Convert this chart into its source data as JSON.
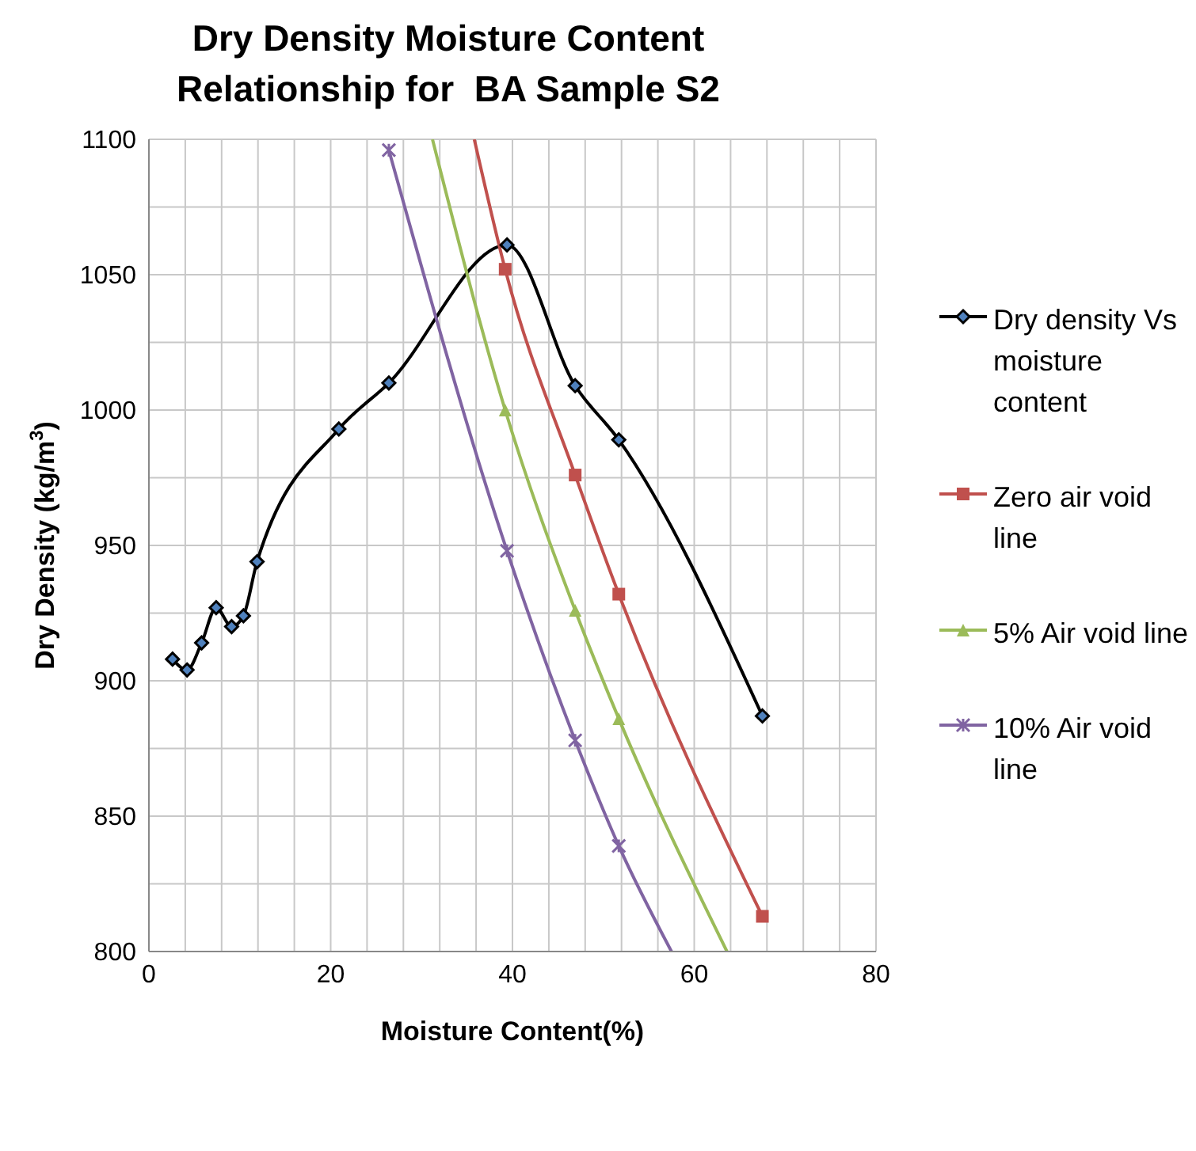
{
  "chart_data": {
    "type": "line",
    "title": "Dry Density Moisture Content Relationship for  BA Sample S2",
    "xlabel": "Moisture Content(%)",
    "ylabel": "Dry Density (kg/m$^{3}$)",
    "xlim": [
      0,
      80
    ],
    "xticks": [
      0,
      {
        "value": 4,
        "label": null
      },
      {
        "value": 8,
        "label": null
      },
      {
        "value": 12,
        "label": null
      },
      {
        "value": 16,
        "label": null
      },
      20,
      {
        "value": 24,
        "label": null
      },
      {
        "value": 28,
        "label": null
      },
      {
        "value": 32,
        "label": null
      },
      {
        "value": 36,
        "label": null
      },
      40,
      {
        "value": 44,
        "label": null
      },
      {
        "value": 48,
        "label": null
      },
      {
        "value": 52,
        "label": null
      },
      {
        "value": 56,
        "label": null
      },
      60,
      {
        "value": 64,
        "label": null
      },
      {
        "value": 68,
        "label": null
      },
      {
        "value": 72,
        "label": null
      },
      {
        "value": 76,
        "label": null
      },
      80
    ],
    "ylim": [
      800,
      1100
    ],
    "yticks": [
      800,
      {
        "value": 825,
        "label": null
      },
      850,
      {
        "value": 875,
        "label": null
      },
      900,
      {
        "value": 925,
        "label": null
      },
      950,
      {
        "value": 975,
        "label": null
      },
      1000,
      {
        "value": 1025,
        "label": null
      },
      1050,
      {
        "value": 1075,
        "label": null
      },
      1100
    ],
    "grid": true,
    "legend": "right",
    "series": [
      {
        "name": "Dry density Vs moisture content",
        "color": "#000000",
        "marker": "diamond",
        "x": [
          2.6,
          4.2,
          5.8,
          7.4,
          9.1,
          10.4,
          11.9,
          20.9,
          26.4,
          39.4,
          46.9,
          51.7,
          67.5
        ],
        "values": [
          908,
          904,
          914,
          927,
          920,
          924,
          944,
          993,
          1010,
          1061,
          1009,
          989,
          887
        ]
      },
      {
        "name": "Zero air void line",
        "color": "#c0504d",
        "marker": "square",
        "x": [
          35.8,
          39.2,
          46.9,
          51.7,
          67.5
        ],
        "values": [
          1100,
          1052,
          976,
          932,
          813
        ]
      },
      {
        "name": "5% Air void line",
        "color": "#9bbb59",
        "marker": "triangle",
        "x": [
          31.2,
          39.2,
          46.9,
          51.7,
          63.6
        ],
        "values": [
          1100,
          1000,
          926,
          886,
          800
        ]
      },
      {
        "name": "10% Air void line",
        "color": "#8064a2",
        "marker": "cross",
        "x": [
          26.4,
          39.4,
          46.9,
          51.7,
          57.5
        ],
        "values": [
          1096,
          948,
          878,
          839,
          800
        ]
      }
    ]
  }
}
